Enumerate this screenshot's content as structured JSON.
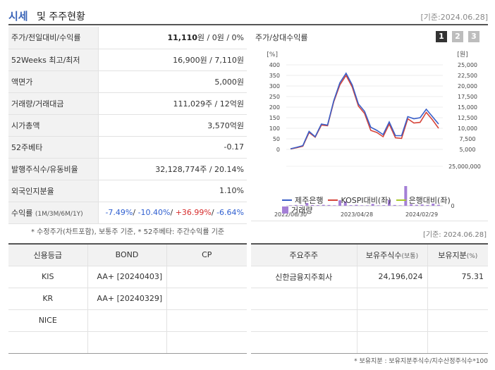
{
  "header": {
    "title_a": "시세",
    "title_b": "및 주주현황",
    "date": "[기준:2024.06.28]"
  },
  "info": [
    {
      "key": "주가/전일대비/수익률",
      "value_bold": "11,110",
      "value_rest": "원 / 0원 / 0%"
    },
    {
      "key": "52Weeks 최고/최저",
      "value": "16,900원 / 7,110원"
    },
    {
      "key": "액면가",
      "value": "5,000원"
    },
    {
      "key": "거래량/거래대금",
      "value": "111,029주 / 12억원"
    },
    {
      "key": "시가총액",
      "value": "3,570억원"
    },
    {
      "key": "52주베타",
      "value": "-0.17"
    },
    {
      "key": "발행주식수/유동비율",
      "value": "32,128,774주 / 20.14%"
    },
    {
      "key": "외국인지분율",
      "value": "1.10%"
    }
  ],
  "returns": {
    "key": "수익률",
    "key_sub": "(1M/3M/6M/1Y)",
    "r1": "-7.49%",
    "sep1": "/ ",
    "r2": "-10.40%",
    "sep2": "/ ",
    "r3": "+36.99%",
    "sep3": "/ ",
    "r4": "-6.64%"
  },
  "note1": "* 수정주가(차트포함), 보통주 기준, * 52주베타: 주간수익률 기준",
  "chart": {
    "title": "주가/상대수익률",
    "tabs": [
      "1",
      "2",
      "3"
    ]
  },
  "chart_data": {
    "type": "line",
    "left_unit": "[%]",
    "right_unit": "[원]",
    "left_ticks": [
      "400",
      "350",
      "300",
      "250",
      "200",
      "150",
      "100",
      "50",
      "0"
    ],
    "right_ticks": [
      "25,000",
      "22,500",
      "20,000",
      "17,500",
      "15,000",
      "12,500",
      "10,000",
      "7,500",
      "5,000"
    ],
    "volume_ticks": [
      "25,000,000",
      "0"
    ],
    "x_ticks": [
      "2022/06/30",
      "2023/04/28",
      "2024/02/29"
    ],
    "ylim_left": [
      0,
      400
    ],
    "ylim_right": [
      5000,
      25000
    ],
    "series": [
      {
        "name": "제주은행",
        "color": "#3a5fc8",
        "values": [
          3,
          10,
          18,
          85,
          60,
          120,
          115,
          230,
          315,
          360,
          305,
          215,
          180,
          105,
          90,
          70,
          130,
          65,
          65,
          155,
          145,
          150,
          190,
          155,
          120
        ]
      },
      {
        "name": "KOSPI대비(좌)",
        "color": "#d6453a",
        "values": [
          2,
          8,
          15,
          80,
          58,
          115,
          112,
          225,
          305,
          350,
          295,
          205,
          170,
          90,
          80,
          60,
          120,
          55,
          52,
          145,
          125,
          128,
          175,
          140,
          100
        ]
      },
      {
        "name": "은행대비(좌)",
        "color": "#a8c82a",
        "values": []
      },
      {
        "name": "거래량",
        "color": "#a47fd6",
        "values": [
          0.3,
          0.5,
          0.4,
          1.8,
          0.5,
          0.4,
          0.6,
          0.5,
          0.3,
          3.5,
          2.8,
          0.4,
          0.6,
          0.3,
          0.3,
          1.2,
          0.3,
          0.4,
          3.8,
          0.5,
          0.3,
          12.5,
          1.0,
          0.6,
          0.8,
          0.5,
          1.4,
          0.6
        ]
      }
    ]
  },
  "date2": "[기준: 2024.06.28]",
  "rating": {
    "headers": [
      "신용등급",
      "BOND",
      "CP"
    ],
    "rows": [
      {
        "agency": "KIS",
        "bond": "AA+ [20240403]",
        "cp": ""
      },
      {
        "agency": "KR",
        "bond": "AA+ [20240329]",
        "cp": ""
      },
      {
        "agency": "NICE",
        "bond": "",
        "cp": ""
      },
      {
        "agency": "",
        "bond": "",
        "cp": ""
      }
    ]
  },
  "holders": {
    "headers": {
      "name": "주요주주",
      "shares": "보유주식수",
      "shares_unit": "(보통)",
      "ratio": "보유지분",
      "ratio_unit": "(%)"
    },
    "rows": [
      {
        "name": "신한금융지주회사",
        "shares": "24,196,024",
        "ratio": "75.31"
      },
      {
        "name": "",
        "shares": "",
        "ratio": ""
      },
      {
        "name": "",
        "shares": "",
        "ratio": ""
      },
      {
        "name": "",
        "shares": "",
        "ratio": ""
      }
    ]
  },
  "note2": "* 보유지분 : 보유지분주식수/지수산정주식수*100"
}
